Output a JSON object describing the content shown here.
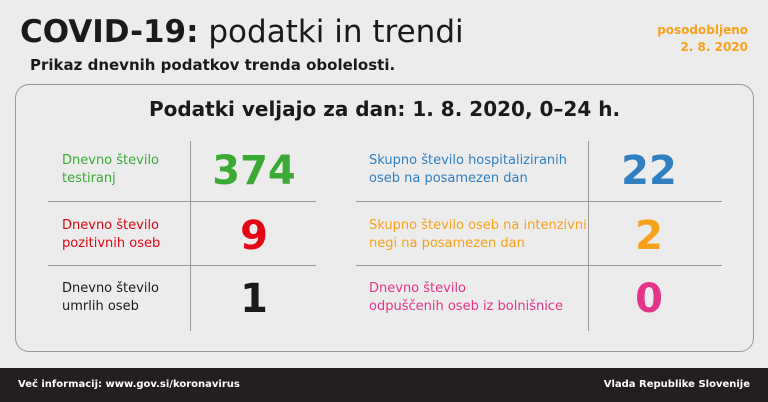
{
  "header": {
    "title_bold": "COVID-19:",
    "title_rest": "podatki in trendi",
    "subtitle": "Prikaz dnevnih podatkov trenda obolelosti.",
    "updated_label": "posodobljeno",
    "updated_date": "2. 8. 2020"
  },
  "card": {
    "title": "Podatki veljajo za dan: 1. 8. 2020, 0–24 h.",
    "left": [
      {
        "line1": "Dnevno število",
        "line2": "testiranj",
        "value": "374",
        "color": "#3aaa35"
      },
      {
        "line1": "Dnevno število",
        "line2": "pozitivnih oseb",
        "value": "9",
        "color": "#e30613"
      },
      {
        "line1": "Dnevno število",
        "line2": "umrlih oseb",
        "value": "1",
        "color": "#1a1a1a"
      }
    ],
    "right": [
      {
        "line1": "Skupno število hospitaliziranih",
        "line2": "oseb na posamezen dan",
        "value": "22",
        "color": "#2f7fc1"
      },
      {
        "line1": "Skupno število oseb na intenzivni",
        "line2": "negi na posamezen dan",
        "value": "2",
        "color": "#f7a21b"
      },
      {
        "line1": "Dnevno število",
        "line2": "odpuščenih oseb iz bolnišnice",
        "value": "0",
        "color": "#e6338a"
      }
    ]
  },
  "footer": {
    "info": "Več informacij: www.gov.si/koronavirus",
    "org": "Vlada Republike Slovenije"
  }
}
